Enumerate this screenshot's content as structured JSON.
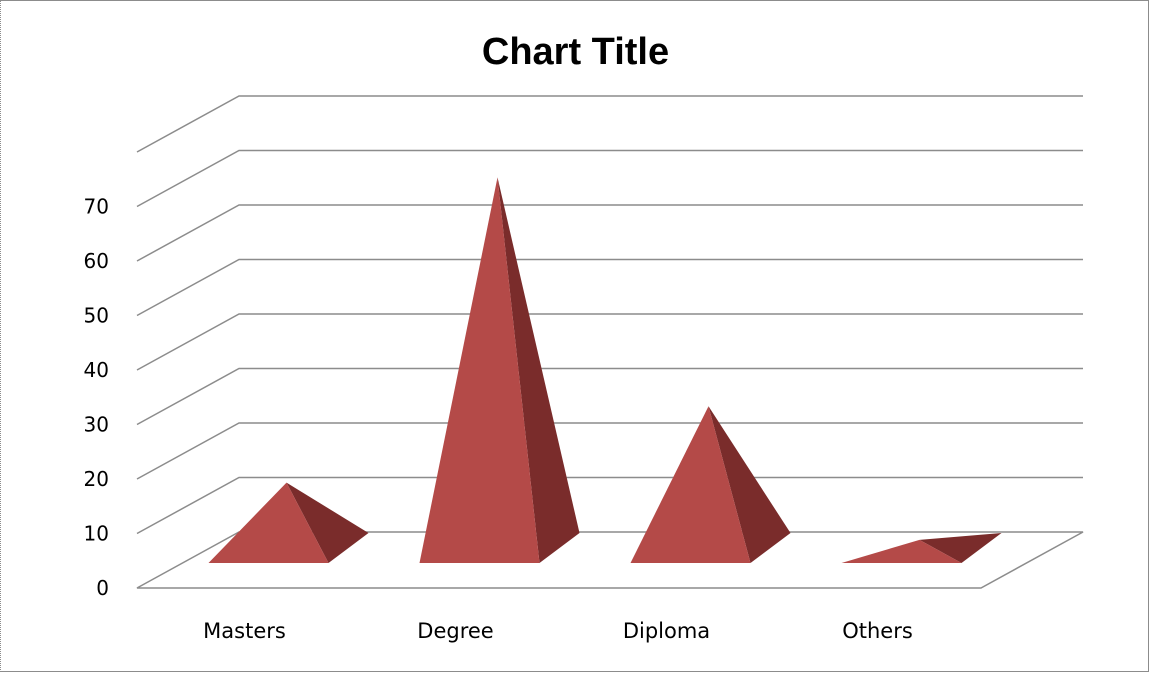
{
  "chart_data": {
    "type": "bar",
    "bar_shape": "3d-pyramid",
    "title": "Chart Title",
    "xlabel": "",
    "ylabel": "",
    "categories": [
      "Masters",
      "Degree",
      "Diploma",
      "Others"
    ],
    "values": [
      12,
      68,
      26,
      1.5
    ],
    "y_ticks": [
      "0",
      "10",
      "20",
      "30",
      "40",
      "50",
      "60",
      "70"
    ],
    "ylim": [
      0,
      70
    ],
    "grid": true,
    "legend": "none",
    "colors": {
      "pyramid_front": "#b44a48",
      "pyramid_side": "#7a2c2b",
      "gridline": "#8c8c8c"
    }
  }
}
